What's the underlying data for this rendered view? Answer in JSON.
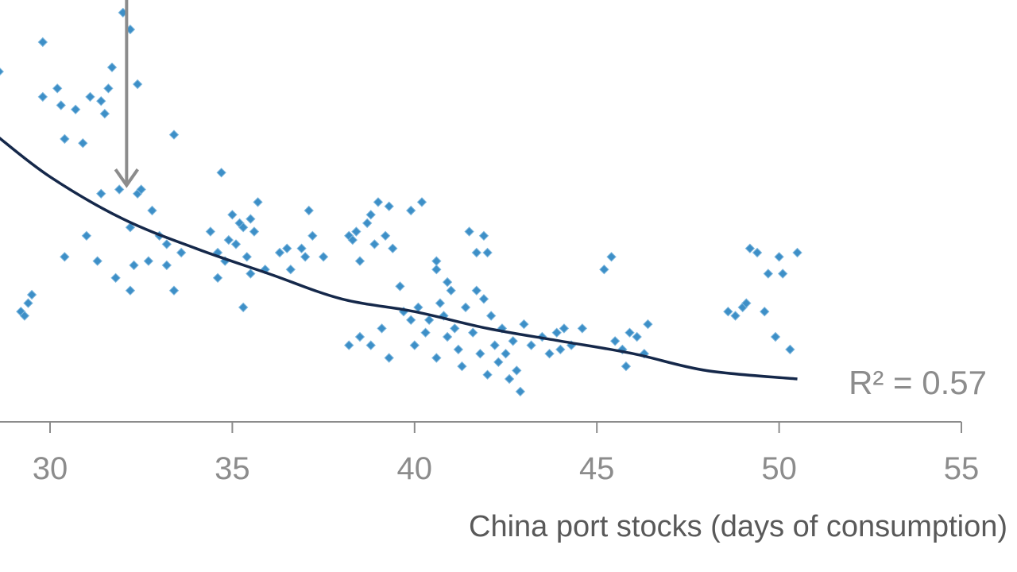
{
  "chart_data": {
    "type": "scatter",
    "xlabel": "China port stocks (days of consumption)",
    "ylabel": "",
    "xlim": [
      25,
      55
    ],
    "ylim": [
      0,
      1
    ],
    "x_ticks": [
      "30",
      "35",
      "40",
      "45",
      "50",
      "55"
    ],
    "grid": false,
    "annotation": "R² = 0.57",
    "colors": {
      "points": "#3d8fc7",
      "trendline": "#15284a",
      "arrow": "#8c8c8c",
      "axis": "#8c8c8c"
    },
    "trendline": {
      "type": "power",
      "x": [
        28.5,
        30,
        32,
        34,
        36,
        38,
        40,
        42,
        44,
        46,
        48,
        50.5
      ],
      "y": [
        0.68,
        0.58,
        0.48,
        0.41,
        0.35,
        0.29,
        0.26,
        0.22,
        0.19,
        0.16,
        0.12,
        0.1
      ]
    },
    "arrow_marker": {
      "x": 32.1,
      "y_top": 1.0,
      "y_bottom": 0.56
    },
    "points": [
      {
        "x": 28.6,
        "y": 0.83
      },
      {
        "x": 29.2,
        "y": 0.26
      },
      {
        "x": 29.3,
        "y": 0.25
      },
      {
        "x": 29.4,
        "y": 0.28
      },
      {
        "x": 29.5,
        "y": 0.3
      },
      {
        "x": 29.8,
        "y": 0.9
      },
      {
        "x": 29.8,
        "y": 0.77
      },
      {
        "x": 30.2,
        "y": 0.79
      },
      {
        "x": 30.3,
        "y": 0.75
      },
      {
        "x": 30.4,
        "y": 0.67
      },
      {
        "x": 30.4,
        "y": 0.39
      },
      {
        "x": 30.7,
        "y": 0.74
      },
      {
        "x": 30.9,
        "y": 0.66
      },
      {
        "x": 31.0,
        "y": 0.44
      },
      {
        "x": 31.1,
        "y": 0.77
      },
      {
        "x": 31.3,
        "y": 0.38
      },
      {
        "x": 31.4,
        "y": 0.76
      },
      {
        "x": 31.4,
        "y": 0.54
      },
      {
        "x": 31.5,
        "y": 0.73
      },
      {
        "x": 31.6,
        "y": 0.79
      },
      {
        "x": 31.7,
        "y": 0.84
      },
      {
        "x": 31.8,
        "y": 0.34
      },
      {
        "x": 31.9,
        "y": 0.55
      },
      {
        "x": 32.0,
        "y": 0.97
      },
      {
        "x": 32.2,
        "y": 0.93
      },
      {
        "x": 32.2,
        "y": 0.46
      },
      {
        "x": 32.2,
        "y": 0.31
      },
      {
        "x": 32.3,
        "y": 0.37
      },
      {
        "x": 32.4,
        "y": 0.8
      },
      {
        "x": 32.4,
        "y": 0.54
      },
      {
        "x": 32.5,
        "y": 0.55
      },
      {
        "x": 32.7,
        "y": 0.38
      },
      {
        "x": 32.8,
        "y": 0.5
      },
      {
        "x": 33.0,
        "y": 0.44
      },
      {
        "x": 33.2,
        "y": 0.42
      },
      {
        "x": 33.2,
        "y": 0.37
      },
      {
        "x": 33.4,
        "y": 0.31
      },
      {
        "x": 33.6,
        "y": 0.4
      },
      {
        "x": 33.4,
        "y": 0.68
      },
      {
        "x": 34.4,
        "y": 0.45
      },
      {
        "x": 34.6,
        "y": 0.34
      },
      {
        "x": 34.6,
        "y": 0.4
      },
      {
        "x": 34.8,
        "y": 0.38
      },
      {
        "x": 35.0,
        "y": 0.49
      },
      {
        "x": 35.1,
        "y": 0.42
      },
      {
        "x": 35.2,
        "y": 0.47
      },
      {
        "x": 35.3,
        "y": 0.46
      },
      {
        "x": 35.4,
        "y": 0.39
      },
      {
        "x": 35.5,
        "y": 0.35
      },
      {
        "x": 35.6,
        "y": 0.45
      },
      {
        "x": 35.7,
        "y": 0.52
      },
      {
        "x": 35.3,
        "y": 0.27
      },
      {
        "x": 35.9,
        "y": 0.36
      },
      {
        "x": 36.3,
        "y": 0.4
      },
      {
        "x": 36.5,
        "y": 0.41
      },
      {
        "x": 36.6,
        "y": 0.36
      },
      {
        "x": 37.0,
        "y": 0.39
      },
      {
        "x": 37.2,
        "y": 0.44
      },
      {
        "x": 37.5,
        "y": 0.39
      },
      {
        "x": 34.7,
        "y": 0.59
      },
      {
        "x": 38.2,
        "y": 0.44
      },
      {
        "x": 38.3,
        "y": 0.43
      },
      {
        "x": 38.5,
        "y": 0.38
      },
      {
        "x": 38.7,
        "y": 0.47
      },
      {
        "x": 38.8,
        "y": 0.49
      },
      {
        "x": 38.9,
        "y": 0.42
      },
      {
        "x": 39.0,
        "y": 0.52
      },
      {
        "x": 39.2,
        "y": 0.44
      },
      {
        "x": 39.3,
        "y": 0.51
      },
      {
        "x": 39.4,
        "y": 0.41
      },
      {
        "x": 38.2,
        "y": 0.18
      },
      {
        "x": 38.5,
        "y": 0.2
      },
      {
        "x": 38.8,
        "y": 0.18
      },
      {
        "x": 39.1,
        "y": 0.22
      },
      {
        "x": 39.3,
        "y": 0.15
      },
      {
        "x": 39.6,
        "y": 0.32
      },
      {
        "x": 39.7,
        "y": 0.26
      },
      {
        "x": 39.9,
        "y": 0.24
      },
      {
        "x": 40.0,
        "y": 0.18
      },
      {
        "x": 40.1,
        "y": 0.27
      },
      {
        "x": 40.2,
        "y": 0.52
      },
      {
        "x": 40.3,
        "y": 0.21
      },
      {
        "x": 40.4,
        "y": 0.24
      },
      {
        "x": 40.6,
        "y": 0.15
      },
      {
        "x": 40.6,
        "y": 0.36
      },
      {
        "x": 40.7,
        "y": 0.28
      },
      {
        "x": 40.8,
        "y": 0.25
      },
      {
        "x": 40.9,
        "y": 0.2
      },
      {
        "x": 41.0,
        "y": 0.31
      },
      {
        "x": 41.1,
        "y": 0.22
      },
      {
        "x": 41.2,
        "y": 0.17
      },
      {
        "x": 41.3,
        "y": 0.13
      },
      {
        "x": 41.4,
        "y": 0.27
      },
      {
        "x": 41.5,
        "y": 0.45
      },
      {
        "x": 41.6,
        "y": 0.21
      },
      {
        "x": 41.7,
        "y": 0.31
      },
      {
        "x": 41.8,
        "y": 0.16
      },
      {
        "x": 41.9,
        "y": 0.29
      },
      {
        "x": 42.0,
        "y": 0.11
      },
      {
        "x": 42.1,
        "y": 0.25
      },
      {
        "x": 42.2,
        "y": 0.18
      },
      {
        "x": 42.3,
        "y": 0.14
      },
      {
        "x": 42.4,
        "y": 0.22
      },
      {
        "x": 42.5,
        "y": 0.16
      },
      {
        "x": 42.6,
        "y": 0.1
      },
      {
        "x": 42.7,
        "y": 0.19
      },
      {
        "x": 42.8,
        "y": 0.12
      },
      {
        "x": 42.9,
        "y": 0.07
      },
      {
        "x": 43.0,
        "y": 0.23
      },
      {
        "x": 41.7,
        "y": 0.4
      },
      {
        "x": 41.9,
        "y": 0.44
      },
      {
        "x": 42.0,
        "y": 0.4
      },
      {
        "x": 39.9,
        "y": 0.5
      },
      {
        "x": 40.6,
        "y": 0.38
      },
      {
        "x": 40.9,
        "y": 0.33
      },
      {
        "x": 43.2,
        "y": 0.18
      },
      {
        "x": 43.5,
        "y": 0.2
      },
      {
        "x": 43.7,
        "y": 0.16
      },
      {
        "x": 43.9,
        "y": 0.21
      },
      {
        "x": 44.1,
        "y": 0.22
      },
      {
        "x": 44.3,
        "y": 0.18
      },
      {
        "x": 44.6,
        "y": 0.22
      },
      {
        "x": 45.2,
        "y": 0.36
      },
      {
        "x": 45.4,
        "y": 0.39
      },
      {
        "x": 45.5,
        "y": 0.19
      },
      {
        "x": 45.7,
        "y": 0.17
      },
      {
        "x": 45.8,
        "y": 0.13
      },
      {
        "x": 45.9,
        "y": 0.21
      },
      {
        "x": 46.1,
        "y": 0.2
      },
      {
        "x": 46.3,
        "y": 0.16
      },
      {
        "x": 46.4,
        "y": 0.23
      },
      {
        "x": 48.6,
        "y": 0.26
      },
      {
        "x": 48.8,
        "y": 0.25
      },
      {
        "x": 49.0,
        "y": 0.27
      },
      {
        "x": 49.1,
        "y": 0.28
      },
      {
        "x": 49.2,
        "y": 0.41
      },
      {
        "x": 49.4,
        "y": 0.4
      },
      {
        "x": 49.6,
        "y": 0.26
      },
      {
        "x": 49.7,
        "y": 0.35
      },
      {
        "x": 49.9,
        "y": 0.2
      },
      {
        "x": 50.0,
        "y": 0.39
      },
      {
        "x": 50.1,
        "y": 0.35
      },
      {
        "x": 50.3,
        "y": 0.17
      },
      {
        "x": 50.5,
        "y": 0.4
      },
      {
        "x": 37.1,
        "y": 0.5
      },
      {
        "x": 36.9,
        "y": 0.41
      },
      {
        "x": 35.5,
        "y": 0.48
      },
      {
        "x": 34.9,
        "y": 0.43
      },
      {
        "x": 38.4,
        "y": 0.45
      },
      {
        "x": 44.0,
        "y": 0.17
      }
    ]
  }
}
